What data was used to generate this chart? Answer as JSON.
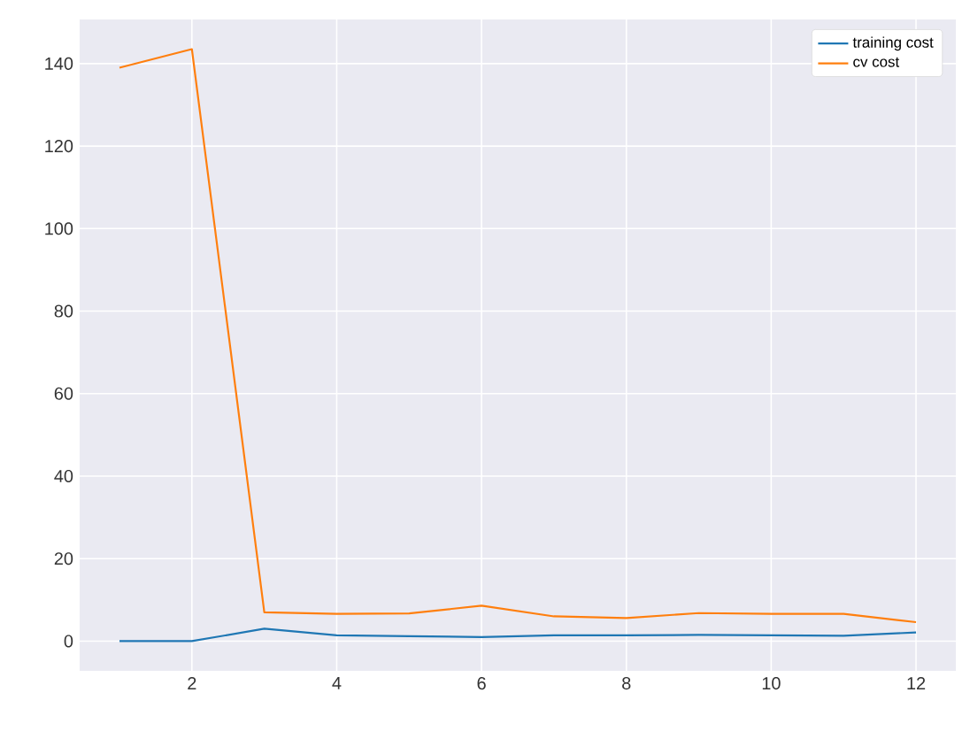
{
  "chart_data": {
    "type": "line",
    "x": [
      1,
      2,
      3,
      4,
      5,
      6,
      7,
      8,
      9,
      10,
      11,
      12
    ],
    "series": [
      {
        "name": "training cost",
        "color": "#1f77b4",
        "values": [
          0,
          0,
          3.0,
          1.4,
          1.2,
          1.0,
          1.4,
          1.4,
          1.5,
          1.4,
          1.3,
          2.1
        ]
      },
      {
        "name": "cv cost",
        "color": "#ff7f0e",
        "values": [
          139,
          143.5,
          7.0,
          6.6,
          6.7,
          8.6,
          6.0,
          5.6,
          6.8,
          6.6,
          6.6,
          4.6
        ]
      }
    ],
    "xlim": [
      0.45,
      12.55
    ],
    "ylim": [
      -7.2,
      150.7
    ],
    "xticks": [
      2,
      4,
      6,
      8,
      10,
      12
    ],
    "yticks": [
      0,
      20,
      40,
      60,
      80,
      100,
      120,
      140
    ],
    "grid": true,
    "legend": "top right",
    "marker": "none",
    "line_style": "solid"
  }
}
